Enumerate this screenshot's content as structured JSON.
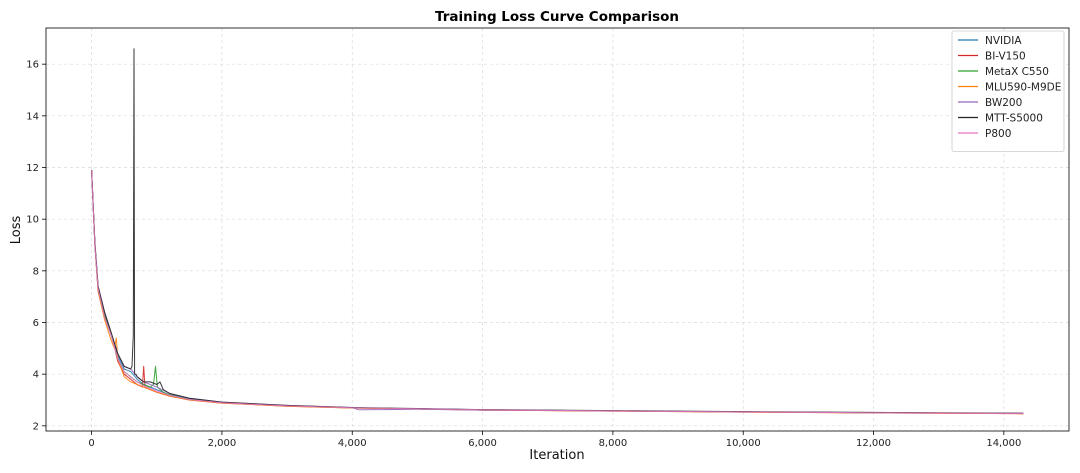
{
  "chart_data": {
    "type": "line",
    "title": "Training Loss Curve Comparison",
    "xlabel": "Iteration",
    "ylabel": "Loss",
    "xlim": [
      -700,
      15000
    ],
    "ylim": [
      1.8,
      17.4
    ],
    "x_ticks": [
      0,
      2000,
      4000,
      6000,
      8000,
      10000,
      12000,
      14000
    ],
    "x_tick_labels": [
      "0",
      "2,000",
      "4,000",
      "6,000",
      "8,000",
      "10,000",
      "12,000",
      "14,000"
    ],
    "y_ticks": [
      2,
      4,
      6,
      8,
      10,
      12,
      14,
      16
    ],
    "y_tick_labels": [
      "2",
      "4",
      "6",
      "8",
      "10",
      "12",
      "14",
      "16"
    ],
    "grid": true,
    "legend_position": "top-right",
    "series": [
      {
        "name": "NVIDIA",
        "color": "#1f77b4",
        "x": [
          0,
          50,
          100,
          200,
          300,
          400,
          500,
          600,
          700,
          800,
          900,
          1000,
          1200,
          1500,
          2000,
          3000,
          4000,
          5000,
          6000,
          8000,
          10000,
          12000,
          14300
        ],
        "y": [
          11.9,
          9.0,
          7.2,
          6.2,
          5.5,
          4.7,
          4.2,
          4.1,
          3.8,
          3.6,
          3.5,
          3.4,
          3.2,
          3.05,
          2.9,
          2.78,
          2.7,
          2.66,
          2.62,
          2.58,
          2.54,
          2.51,
          2.48
        ]
      },
      {
        "name": "BI-V150",
        "color": "#d62728",
        "x": [
          0,
          50,
          100,
          200,
          300,
          400,
          500,
          600,
          700,
          780,
          800,
          820,
          900,
          1000,
          1200,
          1500,
          2000,
          3000,
          4000,
          5000,
          6000,
          8000,
          10000,
          12000,
          14300
        ],
        "y": [
          11.9,
          9.0,
          7.3,
          6.3,
          5.6,
          4.5,
          4.0,
          3.8,
          3.6,
          3.5,
          4.3,
          3.5,
          3.4,
          3.3,
          3.15,
          3.0,
          2.88,
          2.76,
          2.69,
          2.65,
          2.61,
          2.57,
          2.53,
          2.5,
          2.47
        ]
      },
      {
        "name": "MetaX C550",
        "color": "#2ca02c",
        "x": [
          0,
          50,
          100,
          200,
          300,
          400,
          500,
          600,
          700,
          800,
          900,
          950,
          980,
          1010,
          1100,
          1200,
          1500,
          2000,
          3000,
          4000,
          5000,
          6000,
          8000,
          10000,
          12000,
          14300
        ],
        "y": [
          11.9,
          9.0,
          7.3,
          6.3,
          5.5,
          4.6,
          4.1,
          3.9,
          3.7,
          3.6,
          3.5,
          3.6,
          4.3,
          3.5,
          3.3,
          3.2,
          3.02,
          2.89,
          2.77,
          2.7,
          2.66,
          2.62,
          2.58,
          2.54,
          2.51,
          2.48
        ]
      },
      {
        "name": "MLU590-M9DE",
        "color": "#ff7f0e",
        "x": [
          0,
          50,
          100,
          200,
          300,
          350,
          380,
          400,
          500,
          600,
          700,
          800,
          900,
          1000,
          1200,
          1500,
          2000,
          3000,
          4000,
          5000,
          6000,
          8000,
          10000,
          12000,
          14300
        ],
        "y": [
          11.9,
          9.0,
          7.2,
          6.1,
          5.3,
          5.0,
          5.4,
          4.6,
          3.9,
          3.7,
          3.6,
          3.5,
          3.4,
          3.3,
          3.15,
          3.0,
          2.88,
          2.76,
          2.69,
          2.65,
          2.61,
          2.57,
          2.53,
          2.5,
          2.47
        ]
      },
      {
        "name": "BW200",
        "color": "#9467bd",
        "x": [
          0,
          50,
          100,
          200,
          300,
          400,
          500,
          600,
          700,
          800,
          900,
          1000,
          1200,
          1500,
          2000,
          3000,
          4000,
          4100,
          4500,
          5000,
          6000,
          8000,
          10000,
          12000,
          14300
        ],
        "y": [
          11.9,
          9.1,
          7.4,
          6.4,
          5.6,
          4.8,
          4.3,
          4.2,
          3.9,
          3.7,
          3.6,
          3.5,
          3.25,
          3.07,
          2.92,
          2.79,
          2.71,
          2.62,
          2.63,
          2.64,
          2.61,
          2.58,
          2.54,
          2.51,
          2.48
        ]
      },
      {
        "name": "MTT-S5000",
        "color": "#222222",
        "x": [
          0,
          50,
          100,
          200,
          300,
          400,
          500,
          600,
          620,
          640,
          650,
          660,
          680,
          700,
          800,
          900,
          1000,
          1050,
          1100,
          1200,
          1500,
          2000,
          3000,
          4000,
          5000,
          6000,
          8000,
          10000,
          12000,
          14300
        ],
        "y": [
          11.9,
          9.1,
          7.4,
          6.4,
          5.6,
          4.8,
          4.3,
          4.2,
          4.3,
          5.5,
          16.6,
          4.0,
          4.0,
          3.9,
          3.7,
          3.7,
          3.6,
          3.7,
          3.4,
          3.25,
          3.07,
          2.92,
          2.79,
          2.71,
          2.67,
          2.63,
          2.59,
          2.55,
          2.52,
          2.49
        ]
      },
      {
        "name": "P800",
        "color": "#e377c2",
        "x": [
          0,
          50,
          100,
          200,
          300,
          400,
          500,
          600,
          700,
          800,
          900,
          1000,
          1200,
          1500,
          2000,
          3000,
          4000,
          5000,
          6000,
          8000,
          10000,
          12000,
          14300
        ],
        "y": [
          11.9,
          9.0,
          7.3,
          6.2,
          5.5,
          4.6,
          4.1,
          3.9,
          3.7,
          3.55,
          3.45,
          3.35,
          3.18,
          3.02,
          2.89,
          2.77,
          2.7,
          2.66,
          2.62,
          2.58,
          2.54,
          2.51,
          2.48
        ]
      }
    ]
  }
}
